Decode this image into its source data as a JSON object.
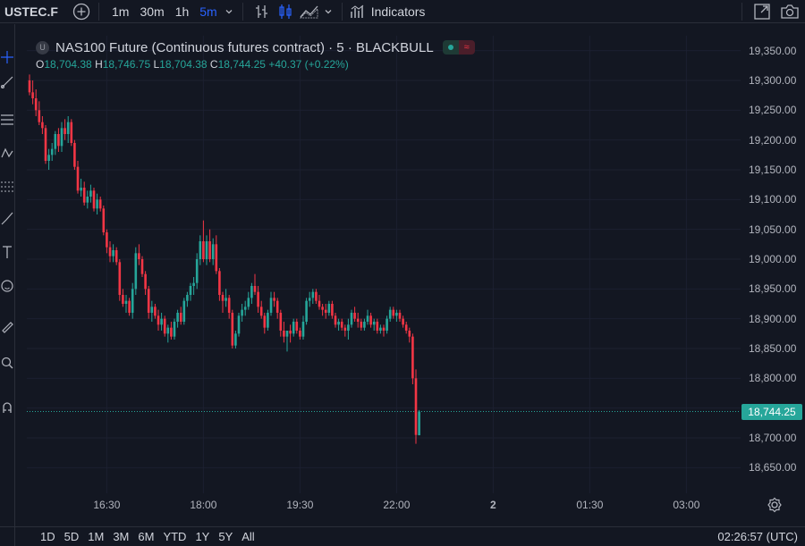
{
  "toolbar": {
    "symbol": "USTEC.F",
    "timeframes": [
      "1m",
      "30m",
      "1h",
      "5m"
    ],
    "active_timeframe": "5m",
    "indicators_label": "Indicators"
  },
  "legend": {
    "title": "NAS100 Future (Continuous futures contract) · 5 · BLACKBULL",
    "logo_letter": "U",
    "open_key": "O",
    "open": "18,704.38",
    "high_key": "H",
    "high": "18,746.75",
    "low_key": "L",
    "low": "18,704.38",
    "close_key": "C",
    "close": "18,744.25",
    "change": "+40.37 (+0.22%)"
  },
  "price_tag": "18,744.25",
  "bottom": {
    "ranges": [
      "1D",
      "5D",
      "1M",
      "3M",
      "6M",
      "YTD",
      "1Y",
      "5Y",
      "All"
    ],
    "clock": "02:26:57 (UTC)"
  },
  "colors": {
    "up": "#26a69a",
    "down": "#f23645",
    "active": "#2962ff"
  },
  "chart_data": {
    "type": "candlestick",
    "ylim": [
      18625,
      19375
    ],
    "yticks": [
      "18,650.00",
      "18,700.00",
      "18,750.00",
      "18,800.00",
      "18,850.00",
      "18,900.00",
      "18,950.00",
      "19,000.00",
      "19,050.00",
      "19,100.00",
      "19,150.00",
      "19,200.00",
      "19,250.00",
      "19,300.00",
      "19,350.00"
    ],
    "ytick_values": [
      18650,
      18700,
      18750,
      18800,
      18850,
      18900,
      18950,
      19000,
      19050,
      19100,
      19150,
      19200,
      19250,
      19300,
      19350
    ],
    "xticks": [
      "16:30",
      "18:00",
      "19:30",
      "22:00",
      "2",
      "01:30",
      "03:00"
    ],
    "xtick_candles": [
      24,
      54,
      84,
      114,
      144,
      174,
      204
    ],
    "last_price": 18744.25,
    "candles": [
      [
        19300,
        19310,
        19275,
        19280
      ],
      [
        19280,
        19300,
        19260,
        19270
      ],
      [
        19270,
        19285,
        19240,
        19250
      ],
      [
        19250,
        19265,
        19225,
        19230
      ],
      [
        19230,
        19240,
        19210,
        19220
      ],
      [
        19220,
        19225,
        19160,
        19165
      ],
      [
        19165,
        19185,
        19150,
        19175
      ],
      [
        19175,
        19195,
        19165,
        19185
      ],
      [
        19185,
        19215,
        19175,
        19210
      ],
      [
        19210,
        19220,
        19180,
        19190
      ],
      [
        19190,
        19230,
        19180,
        19220
      ],
      [
        19220,
        19235,
        19200,
        19210
      ],
      [
        19210,
        19240,
        19195,
        19230
      ],
      [
        19230,
        19235,
        19190,
        19195
      ],
      [
        19195,
        19200,
        19150,
        19155
      ],
      [
        19155,
        19165,
        19110,
        19115
      ],
      [
        19115,
        19135,
        19105,
        19120
      ],
      [
        19120,
        19130,
        19090,
        19095
      ],
      [
        19095,
        19115,
        19085,
        19105
      ],
      [
        19105,
        19125,
        19095,
        19115
      ],
      [
        19115,
        19120,
        19080,
        19085
      ],
      [
        19085,
        19110,
        19075,
        19100
      ],
      [
        19100,
        19105,
        19080,
        19085
      ],
      [
        19085,
        19090,
        19040,
        19045
      ],
      [
        19045,
        19050,
        19010,
        19020
      ],
      [
        19020,
        19030,
        18995,
        19005
      ],
      [
        19005,
        19025,
        18995,
        19015
      ],
      [
        19015,
        19020,
        18990,
        18995
      ],
      [
        18995,
        19000,
        18930,
        18940
      ],
      [
        18940,
        18950,
        18920,
        18925
      ],
      [
        18925,
        18940,
        18910,
        18930
      ],
      [
        18930,
        18935,
        18905,
        18910
      ],
      [
        18910,
        18960,
        18900,
        18950
      ],
      [
        18950,
        19020,
        18940,
        19010
      ],
      [
        19010,
        19025,
        18990,
        19000
      ],
      [
        19000,
        19005,
        18970,
        18975
      ],
      [
        18975,
        18980,
        18940,
        18950
      ],
      [
        18950,
        18955,
        18900,
        18910
      ],
      [
        18910,
        18930,
        18895,
        18920
      ],
      [
        18920,
        18925,
        18900,
        18905
      ],
      [
        18905,
        18915,
        18880,
        18890
      ],
      [
        18890,
        18910,
        18880,
        18900
      ],
      [
        18900,
        18905,
        18870,
        18875
      ],
      [
        18875,
        18890,
        18860,
        18885
      ],
      [
        18885,
        18895,
        18865,
        18870
      ],
      [
        18870,
        18900,
        18865,
        18895
      ],
      [
        18895,
        18915,
        18885,
        18910
      ],
      [
        18910,
        18920,
        18890,
        18895
      ],
      [
        18895,
        18935,
        18890,
        18930
      ],
      [
        18930,
        18945,
        18920,
        18940
      ],
      [
        18940,
        18960,
        18930,
        18955
      ],
      [
        18955,
        18970,
        18940,
        18960
      ],
      [
        18960,
        19010,
        18950,
        19000
      ],
      [
        19000,
        19040,
        18990,
        19030
      ],
      [
        19030,
        19065,
        18995,
        19000
      ],
      [
        19000,
        19040,
        18990,
        19030
      ],
      [
        19030,
        19050,
        18995,
        19000
      ],
      [
        19000,
        19035,
        18990,
        19025
      ],
      [
        19025,
        19040,
        18975,
        18980
      ],
      [
        18980,
        18985,
        18930,
        18940
      ],
      [
        18940,
        18945,
        18910,
        18930
      ],
      [
        18930,
        18950,
        18920,
        18935
      ],
      [
        18935,
        18940,
        18900,
        18910
      ],
      [
        18910,
        18915,
        18850,
        18855
      ],
      [
        18855,
        18880,
        18850,
        18875
      ],
      [
        18875,
        18910,
        18870,
        18905
      ],
      [
        18905,
        18925,
        18895,
        18915
      ],
      [
        18915,
        18930,
        18905,
        18920
      ],
      [
        18920,
        18945,
        18915,
        18935
      ],
      [
        18935,
        18960,
        18925,
        18955
      ],
      [
        18955,
        18975,
        18940,
        18945
      ],
      [
        18945,
        18955,
        18910,
        18920
      ],
      [
        18920,
        18930,
        18900,
        18905
      ],
      [
        18905,
        18910,
        18875,
        18885
      ],
      [
        18885,
        18915,
        18880,
        18910
      ],
      [
        18910,
        18945,
        18905,
        18935
      ],
      [
        18935,
        18945,
        18920,
        18930
      ],
      [
        18930,
        18935,
        18900,
        18910
      ],
      [
        18910,
        18915,
        18870,
        18880
      ],
      [
        18880,
        18895,
        18860,
        18870
      ],
      [
        18870,
        18880,
        18845,
        18880
      ],
      [
        18880,
        18890,
        18860,
        18875
      ],
      [
        18875,
        18900,
        18870,
        18895
      ],
      [
        18895,
        18900,
        18875,
        18880
      ],
      [
        18880,
        18885,
        18865,
        18870
      ],
      [
        18870,
        18905,
        18865,
        18895
      ],
      [
        18895,
        18935,
        18890,
        18930
      ],
      [
        18930,
        18945,
        18920,
        18935
      ],
      [
        18935,
        18950,
        18925,
        18945
      ],
      [
        18945,
        18950,
        18925,
        18930
      ],
      [
        18930,
        18940,
        18915,
        18920
      ],
      [
        18920,
        18925,
        18905,
        18915
      ],
      [
        18915,
        18925,
        18900,
        18910
      ],
      [
        18910,
        18930,
        18905,
        18925
      ],
      [
        18925,
        18930,
        18900,
        18905
      ],
      [
        18905,
        18910,
        18885,
        18890
      ],
      [
        18890,
        18900,
        18880,
        18895
      ],
      [
        18895,
        18900,
        18880,
        18885
      ],
      [
        18885,
        18890,
        18870,
        18880
      ],
      [
        18880,
        18900,
        18865,
        18890
      ],
      [
        18890,
        18915,
        18885,
        18910
      ],
      [
        18910,
        18920,
        18895,
        18900
      ],
      [
        18900,
        18910,
        18885,
        18895
      ],
      [
        18895,
        18900,
        18880,
        18885
      ],
      [
        18885,
        18900,
        18880,
        18895
      ],
      [
        18895,
        18915,
        18890,
        18905
      ],
      [
        18905,
        18910,
        18885,
        18890
      ],
      [
        18890,
        18900,
        18880,
        18895
      ],
      [
        18895,
        18900,
        18875,
        18880
      ],
      [
        18880,
        18890,
        18875,
        18885
      ],
      [
        18885,
        18890,
        18870,
        18880
      ],
      [
        18880,
        18905,
        18875,
        18900
      ],
      [
        18900,
        18920,
        18895,
        18915
      ],
      [
        18915,
        18920,
        18900,
        18905
      ],
      [
        18905,
        18915,
        18895,
        18910
      ],
      [
        18910,
        18915,
        18895,
        18900
      ],
      [
        18900,
        18905,
        18885,
        18890
      ],
      [
        18890,
        18895,
        18875,
        18880
      ],
      [
        18880,
        18885,
        18860,
        18870
      ],
      [
        18870,
        18875,
        18790,
        18800
      ],
      [
        18800,
        18815,
        18690,
        18705
      ],
      [
        18704.38,
        18746.75,
        18704.38,
        18744.25
      ]
    ]
  }
}
